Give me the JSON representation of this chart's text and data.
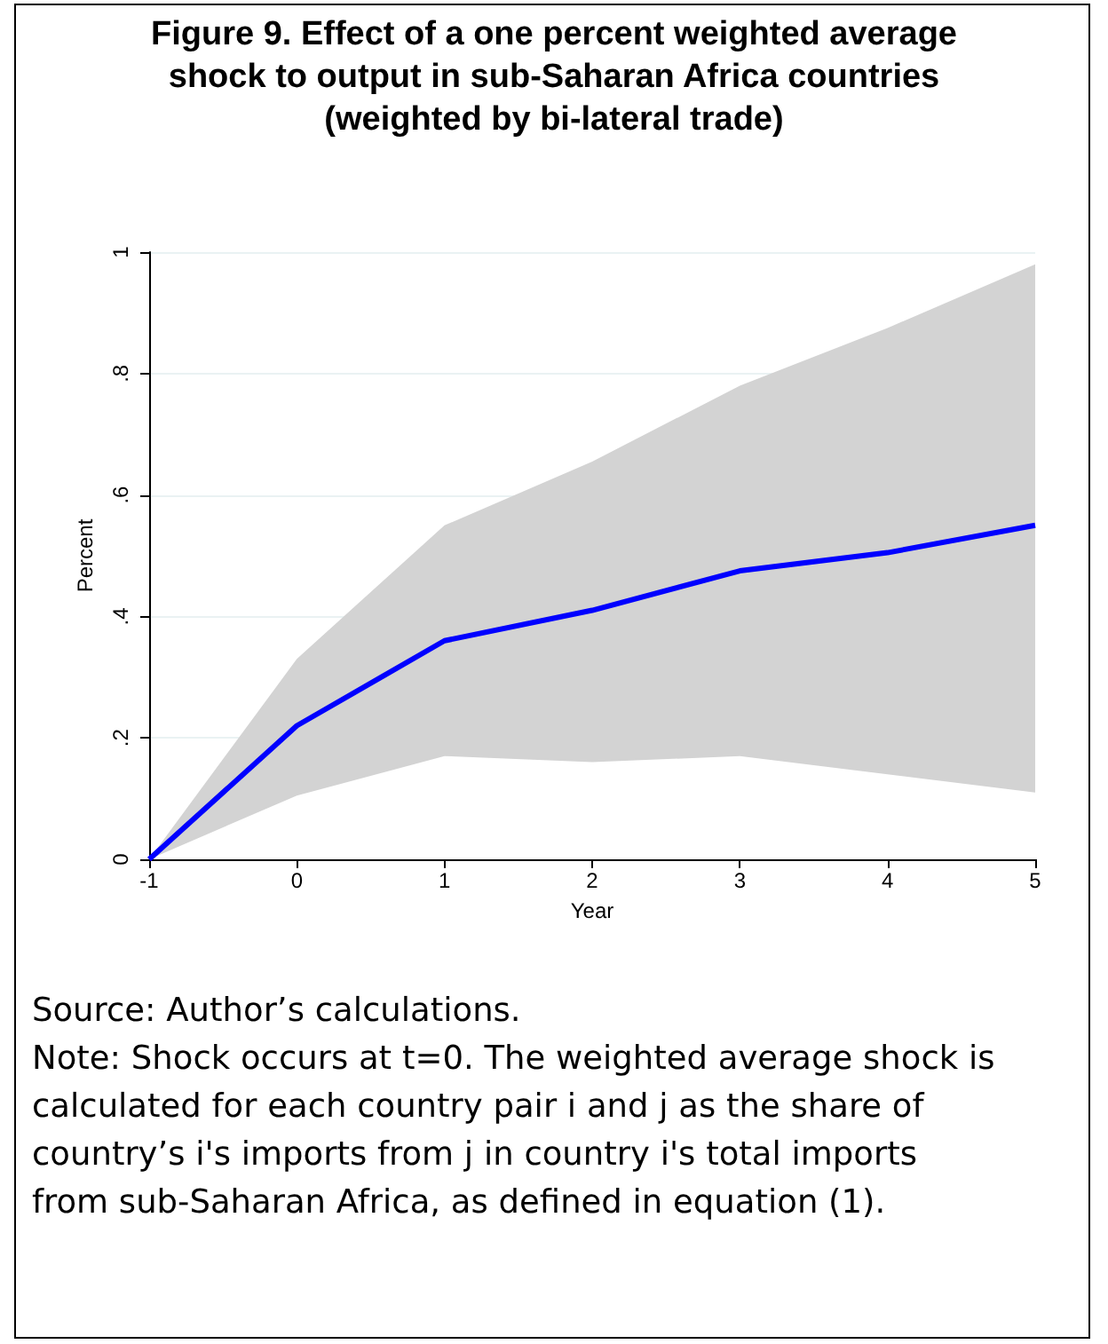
{
  "chart_data": {
    "type": "line",
    "title": "Figure 9. Effect of a one percent weighted average shock to output in sub-Saharan Africa countries (weighted by bi-lateral trade)",
    "xlabel": "Year",
    "ylabel": "Percent",
    "x": [
      -1,
      0,
      1,
      2,
      3,
      4,
      5
    ],
    "series": [
      {
        "color": "#0000ff",
        "values": [
          0,
          0.22,
          0.36,
          0.41,
          0.475,
          0.505,
          0.55
        ],
        "lower": [
          0,
          0.105,
          0.17,
          0.16,
          0.17,
          0.14,
          0.11
        ],
        "upper": [
          0,
          0.33,
          0.55,
          0.655,
          0.78,
          0.875,
          0.98
        ]
      }
    ],
    "xlim": [
      -1,
      5
    ],
    "xticks": [
      -1,
      0,
      1,
      2,
      3,
      4,
      5
    ],
    "ylim": [
      0,
      1
    ],
    "yticks": [
      0,
      {
        "value": 0.2,
        "label": ".2"
      },
      {
        "value": 0.4,
        "label": ".4"
      },
      {
        "value": 0.6,
        "label": ".6"
      },
      {
        "value": 0.8,
        "label": ".8"
      },
      1
    ],
    "grid": "y",
    "marker": "none",
    "line_style": "solid",
    "annotations": [
      "Source: Author’s calculations.",
      "Note: Shock occurs at t=0. The weighted average shock is calculated for each country pair i and j as the share of country’s i's imports from j in country i's total imports from sub-Saharan Africa, as defined in equation (1)."
    ]
  }
}
